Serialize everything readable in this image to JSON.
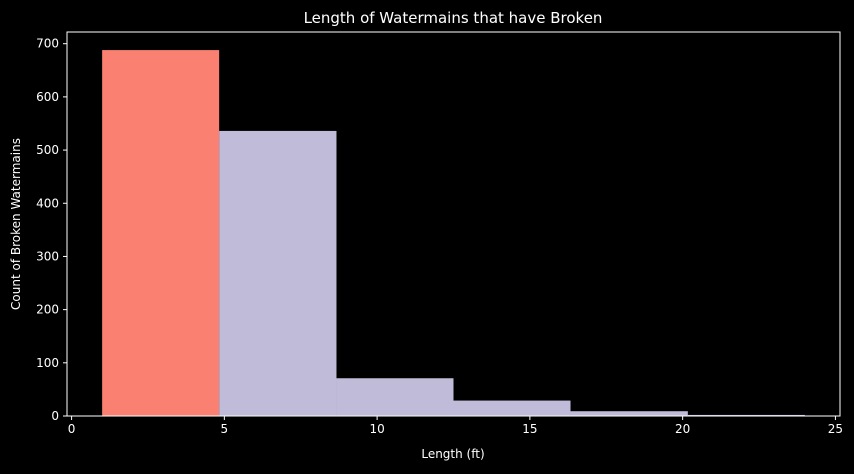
{
  "chart_data": {
    "type": "bar",
    "title": "Length of Watermains that have Broken",
    "xlabel": "Length (ft)",
    "ylabel": "Count of Broken Watermains",
    "xlim": [
      -0.15,
      25.15
    ],
    "ylim": [
      0,
      722
    ],
    "x_ticks": [
      0,
      5,
      10,
      15,
      20,
      25
    ],
    "y_ticks": [
      0,
      100,
      200,
      300,
      400,
      500,
      600,
      700
    ],
    "bins": [
      {
        "x0": 1.0,
        "x1": 4.83,
        "value": 688,
        "color": "#fa8072"
      },
      {
        "x0": 4.83,
        "x1": 8.67,
        "value": 536,
        "color": "#bfbbd9"
      },
      {
        "x0": 8.67,
        "x1": 12.5,
        "value": 71,
        "color": "#bfbbd9"
      },
      {
        "x0": 12.5,
        "x1": 16.33,
        "value": 29,
        "color": "#bfbbd9"
      },
      {
        "x0": 16.33,
        "x1": 20.17,
        "value": 9,
        "color": "#bfbbd9"
      },
      {
        "x0": 20.17,
        "x1": 24.0,
        "value": 2,
        "color": "#bfbbd9"
      }
    ],
    "grid": false,
    "legend": "none"
  },
  "colors": {
    "background": "#000000",
    "axes": "#ffffff",
    "text": "#ffffff",
    "highlight": "#fa8072",
    "bar": "#bfbbd9"
  }
}
